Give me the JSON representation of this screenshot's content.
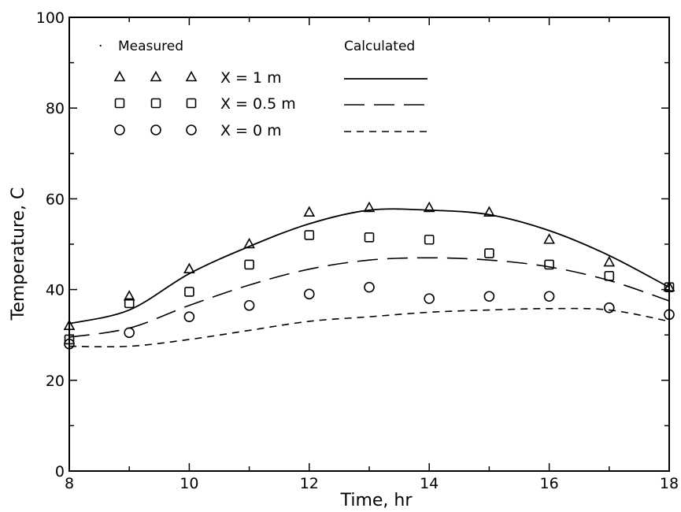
{
  "chart_data": {
    "type": "scatter",
    "title": "",
    "xlabel": "Time, hr",
    "ylabel": "Temperature, C",
    "xlim": [
      8,
      18
    ],
    "ylim": [
      0,
      100
    ],
    "x_ticks": [
      8,
      10,
      12,
      14,
      16,
      18
    ],
    "y_ticks": [
      0,
      20,
      40,
      60,
      80,
      100
    ],
    "grid": false,
    "legend_placement": "top-left",
    "legend": {
      "measured_header": "Measured",
      "calculated_header": "Calculated",
      "entries": [
        {
          "label": "X = 1 m",
          "marker": "triangle",
          "line": "solid"
        },
        {
          "label": "X = 0.5 m",
          "marker": "square",
          "line": "long-dash"
        },
        {
          "label": "X = 0 m",
          "marker": "circle",
          "line": "short-dash"
        }
      ]
    },
    "x": [
      8,
      9,
      10,
      11,
      12,
      13,
      14,
      15,
      16,
      17,
      18
    ],
    "series": [
      {
        "name": "X = 1 m",
        "kind": "measured",
        "marker": "triangle",
        "values": [
          32,
          38.5,
          44.5,
          50,
          57,
          58,
          58,
          57,
          51,
          46,
          40.5
        ]
      },
      {
        "name": "X = 0.5 m",
        "kind": "measured",
        "marker": "square",
        "values": [
          29,
          37,
          39.5,
          45.5,
          52,
          51.5,
          51,
          48,
          45.5,
          43,
          40.5
        ]
      },
      {
        "name": "X = 0 m",
        "kind": "measured",
        "marker": "circle",
        "values": [
          28,
          30.5,
          34,
          36.5,
          39,
          40.5,
          38,
          38.5,
          38.5,
          36,
          34.5
        ]
      },
      {
        "name": "X = 1 m",
        "kind": "calculated",
        "line": "solid",
        "values": [
          32.5,
          35.5,
          43.5,
          49.5,
          54.5,
          57.5,
          57.5,
          56.5,
          53,
          47.5,
          40.5
        ]
      },
      {
        "name": "X = 0.5 m",
        "kind": "calculated",
        "line": "long-dash",
        "values": [
          29.5,
          31.5,
          36.5,
          41,
          44.5,
          46.5,
          47,
          46.5,
          45,
          42,
          37.5
        ]
      },
      {
        "name": "X = 0 m",
        "kind": "calculated",
        "line": "short-dash",
        "values": [
          27.5,
          27.5,
          29,
          31,
          33,
          34,
          35,
          35.5,
          35.8,
          35.5,
          33
        ]
      }
    ]
  }
}
